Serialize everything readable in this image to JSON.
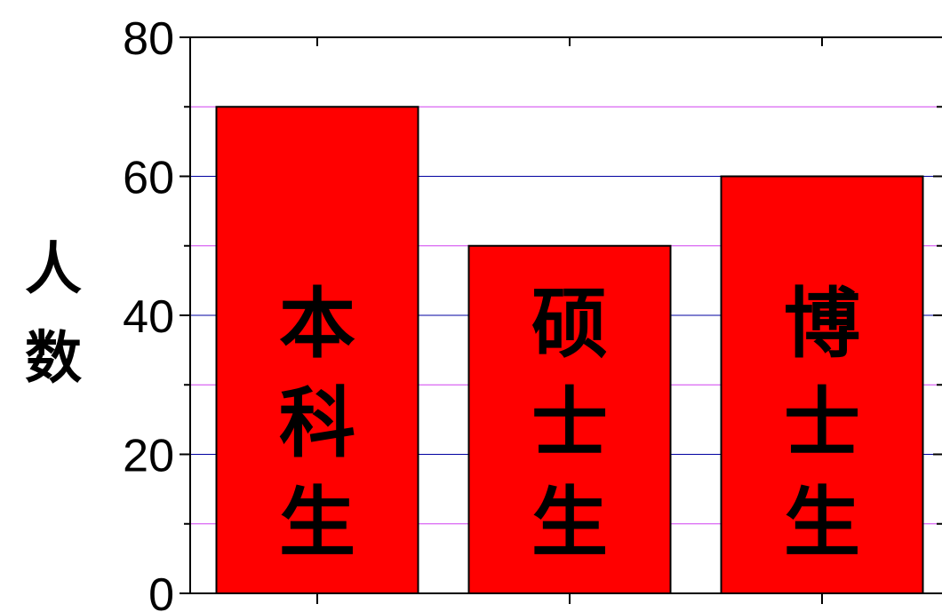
{
  "chart_data": {
    "type": "bar",
    "categories": [
      "本科生",
      "硕士生",
      "博士生"
    ],
    "values": [
      70,
      50,
      60
    ],
    "ylabel": "人数",
    "xlabel": "",
    "ylim": [
      0,
      80
    ],
    "yticks": [
      0,
      20,
      40,
      60,
      80
    ],
    "yticks_labels": [
      "0",
      "20",
      "40",
      "60",
      "80"
    ],
    "grid": {
      "major": true,
      "minor": true,
      "major_color": "#0000a0",
      "minor_color": "#d040f0"
    },
    "bar_color": "#ff0000",
    "bar_edge_color": "#000000",
    "legend": "none"
  }
}
